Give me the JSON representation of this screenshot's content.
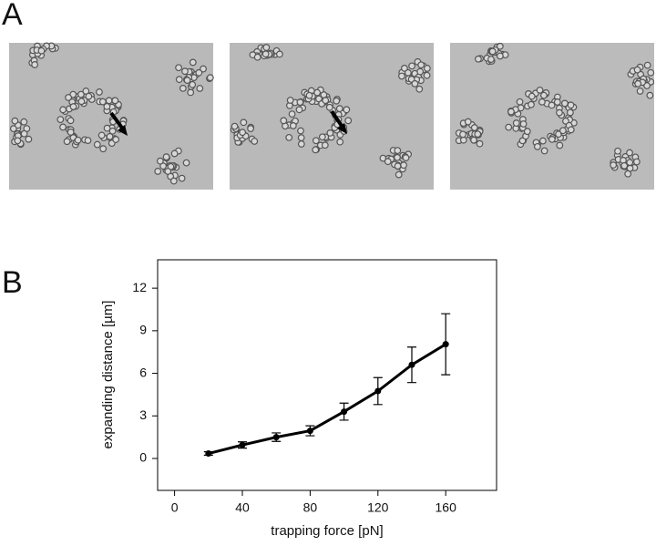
{
  "panel_labels": [
    "A",
    "B"
  ],
  "chart_data": {
    "type": "line",
    "x_label": "trapping force [pN]",
    "y_label": "expanding distance [µm]",
    "x": [
      20,
      40,
      60,
      80,
      100,
      120,
      140,
      160
    ],
    "series": [
      {
        "color": "#000000",
        "values": [
          0.35,
          0.95,
          1.5,
          1.95,
          3.3,
          4.75,
          6.6,
          8.05
        ],
        "errors": [
          0.12,
          0.22,
          0.3,
          0.35,
          0.6,
          0.95,
          1.25,
          2.15
        ]
      }
    ],
    "xlim": [
      -10,
      190
    ],
    "xticks": [
      0,
      40,
      80,
      120,
      160
    ],
    "ylim": [
      -2.25,
      14
    ],
    "yticks": [
      0,
      3,
      6,
      9,
      12
    ]
  }
}
